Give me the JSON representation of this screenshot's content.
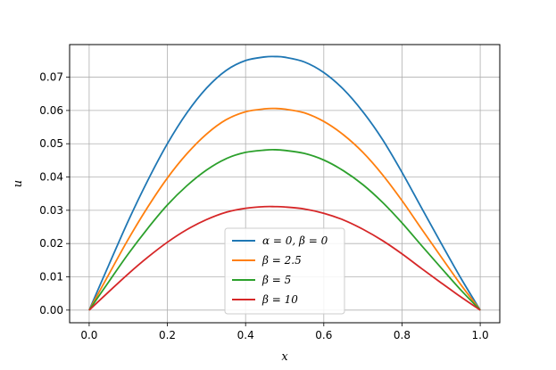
{
  "chart_data": {
    "type": "line",
    "title": "",
    "xlabel": "x",
    "ylabel": "u",
    "xlim": [
      -0.05,
      1.05
    ],
    "ylim": [
      -0.0038,
      0.0798
    ],
    "grid": true,
    "legend_placement": "lower-center",
    "x_ticks": [
      0.0,
      0.2,
      0.4,
      0.6,
      0.8,
      1.0
    ],
    "x_tick_labels": [
      "0.0",
      "0.2",
      "0.4",
      "0.6",
      "0.8",
      "1.0"
    ],
    "y_ticks": [
      0.0,
      0.01,
      0.02,
      0.03,
      0.04,
      0.05,
      0.06,
      0.07
    ],
    "y_tick_labels": [
      "0.00",
      "0.01",
      "0.02",
      "0.03",
      "0.04",
      "0.05",
      "0.06",
      "0.07"
    ],
    "x": [
      0.0,
      0.05,
      0.1,
      0.15,
      0.2,
      0.25,
      0.3,
      0.35,
      0.4,
      0.45,
      0.475,
      0.5,
      0.55,
      0.6,
      0.65,
      0.7,
      0.75,
      0.8,
      0.85,
      0.9,
      0.95,
      1.0
    ],
    "series": [
      {
        "name": "α = 0, β = 0",
        "color": "#1f77b4",
        "values": [
          0.0,
          0.0135,
          0.0268,
          0.039,
          0.05,
          0.0593,
          0.0667,
          0.072,
          0.075,
          0.0761,
          0.0762,
          0.076,
          0.0746,
          0.0714,
          0.0664,
          0.0596,
          0.0513,
          0.0414,
          0.0307,
          0.0201,
          0.0097,
          0.0
        ]
      },
      {
        "name": "β = 2.5",
        "color": "#ff7f0e",
        "values": [
          0.0,
          0.0107,
          0.0213,
          0.031,
          0.0397,
          0.047,
          0.0529,
          0.0572,
          0.0596,
          0.0605,
          0.0606,
          0.0604,
          0.0593,
          0.0567,
          0.0527,
          0.0474,
          0.0407,
          0.0329,
          0.0244,
          0.016,
          0.0077,
          0.0
        ]
      },
      {
        "name": "β = 5",
        "color": "#2ca02c",
        "values": [
          0.0,
          0.0085,
          0.0169,
          0.0246,
          0.0316,
          0.0374,
          0.0421,
          0.0455,
          0.0474,
          0.0481,
          0.0482,
          0.048,
          0.0471,
          0.0451,
          0.0419,
          0.0377,
          0.0324,
          0.0262,
          0.0194,
          0.0127,
          0.0061,
          0.0
        ]
      },
      {
        "name": "β = 10",
        "color": "#d62728",
        "values": [
          0.0,
          0.0055,
          0.0109,
          0.0159,
          0.0204,
          0.0242,
          0.0272,
          0.0294,
          0.0306,
          0.0311,
          0.0311,
          0.031,
          0.0304,
          0.0291,
          0.0271,
          0.0243,
          0.0209,
          0.0169,
          0.0125,
          0.0082,
          0.004,
          0.0
        ]
      }
    ]
  }
}
